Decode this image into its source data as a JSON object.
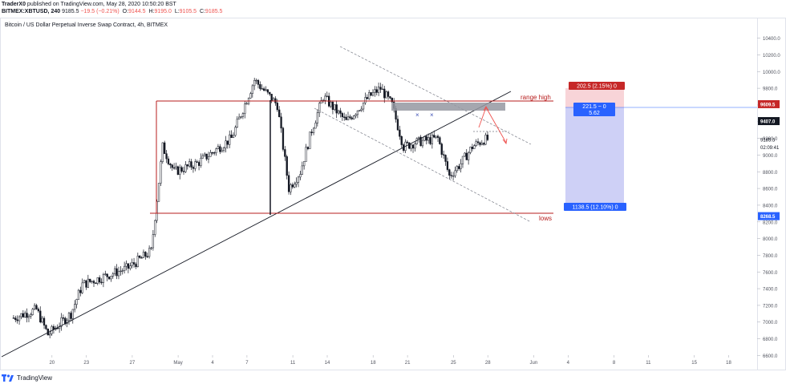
{
  "header": {
    "publisher": "TraderX0",
    "published_text": "published on TradingView.com, May 28, 2020 10:50:20 BST",
    "symbol": "BITMEX:XBTUSD, 240",
    "last": "9185.5",
    "change": "−19.5 (−0.21%)",
    "o_label": "O:",
    "o_value": "9144.5",
    "h_label": "H:",
    "h_value": "9195.0",
    "l_label": "L:",
    "l_value": "9105.5",
    "c_label": "C:",
    "c_value": "9185.5"
  },
  "footer": {
    "brand": "TradingView"
  },
  "chart_data": {
    "type": "candlestick",
    "title": "Bitcoin / US Dollar Perpetual Inverse Swap Contract, 4h, BITMEX",
    "y_axis": {
      "ticks": [
        6600,
        6800,
        7000,
        7200,
        7400,
        7600,
        7800,
        8000,
        8200,
        8400,
        8600,
        8800,
        9000,
        9200,
        9400,
        9600,
        9800,
        10000,
        10200,
        10400
      ],
      "ylim": [
        6400,
        10500
      ]
    },
    "x_axis": {
      "ticks": [
        "20",
        "23",
        "27",
        "May",
        "4",
        "7",
        "11",
        "14",
        "18",
        "21",
        "25",
        "28",
        "Jun",
        "4",
        "8",
        "11",
        "15",
        "18"
      ]
    },
    "price_anchors": [
      {
        "date": "2020-04-17",
        "close": 7050
      },
      {
        "date": "2020-04-19",
        "close": 7150
      },
      {
        "date": "2020-04-20",
        "close": 6850
      },
      {
        "date": "2020-04-22",
        "close": 7100
      },
      {
        "date": "2020-04-23",
        "close": 7450
      },
      {
        "date": "2020-04-25",
        "close": 7550
      },
      {
        "date": "2020-04-27",
        "close": 7650
      },
      {
        "date": "2020-04-29",
        "close": 7850
      },
      {
        "date": "2020-04-30",
        "close": 9100
      },
      {
        "date": "2020-05-01",
        "close": 8800
      },
      {
        "date": "2020-05-03",
        "close": 8900
      },
      {
        "date": "2020-05-06",
        "close": 9200
      },
      {
        "date": "2020-05-08",
        "close": 9900
      },
      {
        "date": "2020-05-10",
        "close": 9600
      },
      {
        "date": "2020-05-11",
        "close": 8600
      },
      {
        "date": "2020-05-12",
        "close": 8800
      },
      {
        "date": "2020-05-13",
        "close": 9300
      },
      {
        "date": "2020-05-14",
        "close": 9700
      },
      {
        "date": "2020-05-16",
        "close": 9400
      },
      {
        "date": "2020-05-18",
        "close": 9700
      },
      {
        "date": "2020-05-19",
        "close": 9800
      },
      {
        "date": "2020-05-20",
        "close": 9600
      },
      {
        "date": "2020-05-21",
        "close": 9100
      },
      {
        "date": "2020-05-22",
        "close": 9150
      },
      {
        "date": "2020-05-24",
        "close": 9200
      },
      {
        "date": "2020-05-25",
        "close": 8750
      },
      {
        "date": "2020-05-26",
        "close": 8900
      },
      {
        "date": "2020-05-27",
        "close": 9100
      },
      {
        "date": "2020-05-28",
        "close": 9185.5
      }
    ],
    "levels": [
      {
        "name": "range high",
        "value": 9420
      },
      {
        "name": "lows",
        "value": 8150
      }
    ],
    "price_labels": {
      "current": "9185.5",
      "countdown": "02:09:41",
      "stop": "9609.5",
      "entry": "9407.0",
      "target": "8268.5"
    },
    "position_tool": {
      "risk_label": "202.5 (2.15%) 0",
      "ratio_line1": "221.5 ~ 0",
      "ratio_line2": "5.62",
      "reward_label": "1138.5 (12.10%) 0"
    },
    "annotations": [
      "range high",
      "lows"
    ],
    "colors": {
      "up": "#131722",
      "down": "#131722",
      "levels": "#b71c1c",
      "channel": "#787b86",
      "stop_zone": "#f8d4d8",
      "target_zone": "#c5c8f5",
      "blue_label": "#2962ff",
      "red_label": "#c62828",
      "grey_zone": "#9598a1",
      "arrow": "#ef5350"
    }
  }
}
